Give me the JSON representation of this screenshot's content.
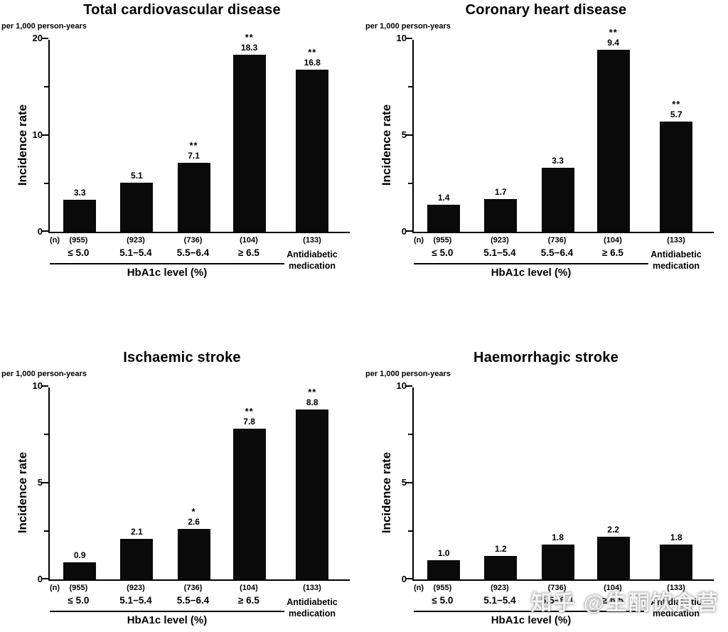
{
  "watermark": "知乎 @生酮饮食营",
  "chart_data": [
    {
      "type": "bar",
      "title": "Total cardiovascular disease",
      "unit_label": "per 1,000 person-years",
      "ylabel": "Incidence rate",
      "xlabel": "HbA1c level (%)",
      "ylim": [
        0,
        20
      ],
      "yticks": [
        0,
        10,
        20
      ],
      "n_prefix": "(n)",
      "categories": [
        "≤ 5.0",
        "5.1−5.4",
        "5.5−6.4",
        "≥ 6.5",
        "Antidiabetic\nmedication"
      ],
      "n_values": [
        "(955)",
        "(923)",
        "(736)",
        "(104)",
        "(133)"
      ],
      "values": [
        3.3,
        5.1,
        7.1,
        18.3,
        16.8
      ],
      "value_labels": [
        "3.3",
        "5.1",
        "7.1",
        "18.3",
        "16.8"
      ],
      "significance": [
        "",
        "",
        "**",
        "**",
        "**"
      ],
      "bar_color": "#0a0a0a",
      "grid": false,
      "legend": "none"
    },
    {
      "type": "bar",
      "title": "Coronary heart disease",
      "unit_label": "per 1,000 person-years",
      "ylabel": "Incidence rate",
      "xlabel": "HbA1c level (%)",
      "ylim": [
        0,
        10
      ],
      "yticks": [
        0,
        5,
        10
      ],
      "n_prefix": "(n)",
      "categories": [
        "≤ 5.0",
        "5.1−5.4",
        "5.5−6.4",
        "≥ 6.5",
        "Antidiabetic\nmedication"
      ],
      "n_values": [
        "(955)",
        "(923)",
        "(736)",
        "(104)",
        "(133)"
      ],
      "values": [
        1.4,
        1.7,
        3.3,
        9.4,
        5.7
      ],
      "value_labels": [
        "1.4",
        "1.7",
        "3.3",
        "9.4",
        "5.7"
      ],
      "significance": [
        "",
        "",
        "",
        "**",
        "**"
      ],
      "bar_color": "#0a0a0a",
      "grid": false,
      "legend": "none"
    },
    {
      "type": "bar",
      "title": "Ischaemic stroke",
      "unit_label": "per 1,000 person-years",
      "ylabel": "Incidence rate",
      "xlabel": "HbA1c level (%)",
      "ylim": [
        0,
        10
      ],
      "yticks": [
        0,
        5,
        10
      ],
      "n_prefix": "(n)",
      "categories": [
        "≤ 5.0",
        "5.1−5.4",
        "5.5−6.4",
        "≥ 6.5",
        "Antidiabetic\nmedication"
      ],
      "n_values": [
        "(955)",
        "(923)",
        "(736)",
        "(104)",
        "(133)"
      ],
      "values": [
        0.9,
        2.1,
        2.6,
        7.8,
        8.8
      ],
      "value_labels": [
        "0.9",
        "2.1",
        "2.6",
        "7.8",
        "8.8"
      ],
      "significance": [
        "",
        "",
        "*",
        "**",
        "**"
      ],
      "bar_color": "#0a0a0a",
      "grid": false,
      "legend": "none"
    },
    {
      "type": "bar",
      "title": "Haemorrhagic stroke",
      "unit_label": "per 1,000 person-years",
      "ylabel": "Incidence rate",
      "xlabel": "HbA1c level (%)",
      "ylim": [
        0,
        10
      ],
      "yticks": [
        0,
        5,
        10
      ],
      "n_prefix": "(n)",
      "categories": [
        "≤ 5.0",
        "5.1−5.4",
        "5.5−6.4",
        "≥ 6.5",
        "Antidiabetic\nmedication"
      ],
      "n_values": [
        "(955)",
        "(923)",
        "(736)",
        "(104)",
        "(133)"
      ],
      "values": [
        1.0,
        1.2,
        1.8,
        2.2,
        1.8
      ],
      "value_labels": [
        "1.0",
        "1.2",
        "1.8",
        "2.2",
        "1.8"
      ],
      "significance": [
        "",
        "",
        "",
        "",
        ""
      ],
      "bar_color": "#0a0a0a",
      "grid": false,
      "legend": "none"
    }
  ]
}
